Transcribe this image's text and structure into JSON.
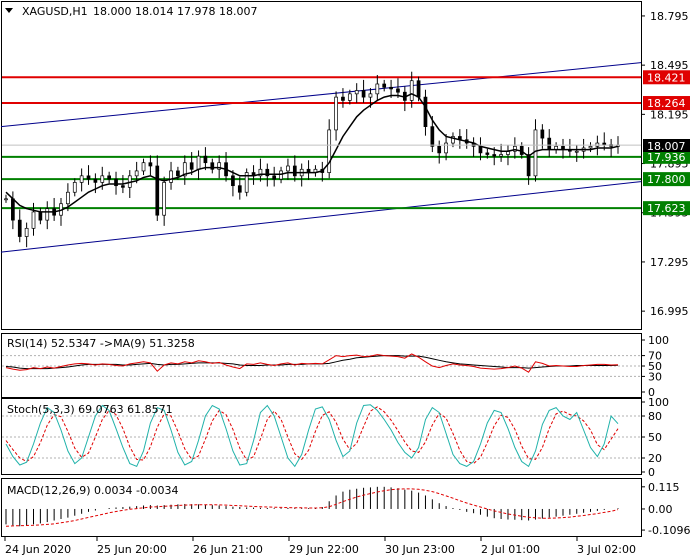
{
  "chart_data": {
    "type": "candlestick",
    "symbol": "XAGUSD,H1",
    "header_ohlc": "18.000 18.014 17.978 18.007",
    "price_axis_ticks": [
      "18.795",
      "18.495",
      "18.195",
      "17.895",
      "17.595",
      "17.295",
      "16.995"
    ],
    "ylim": [
      16.88,
      18.88
    ],
    "x_labels": [
      "24 Jun 2020",
      "25 Jun 20:00",
      "26 Jun 21:00",
      "29 Jun 22:00",
      "30 Jun 23:00",
      "2 Jul 01:00",
      "3 Jul 02:00"
    ],
    "horizontal_levels": [
      {
        "value": 18.421,
        "label": "18.421",
        "color": "#e00000"
      },
      {
        "value": 18.264,
        "label": "18.264",
        "color": "#e00000"
      },
      {
        "value": 17.936,
        "label": "17.936",
        "color": "#008000"
      },
      {
        "value": 17.8,
        "label": "17.800",
        "color": "#008000"
      },
      {
        "value": 17.623,
        "label": "17.623",
        "color": "#008000"
      }
    ],
    "current_price": {
      "value": 18.007,
      "label": "18.007"
    },
    "channel_lines": [
      {
        "from": 18.12,
        "to": 18.51,
        "color": "#00008b"
      },
      {
        "from": 17.355,
        "to": 17.785,
        "color": "#00008b"
      }
    ],
    "close_path": [
      17.68,
      17.55,
      17.45,
      17.5,
      17.6,
      17.55,
      17.62,
      17.58,
      17.65,
      17.72,
      17.78,
      17.82,
      17.8,
      17.78,
      17.82,
      17.8,
      17.76,
      17.75,
      17.82,
      17.85,
      17.9,
      17.88,
      17.58,
      17.78,
      17.85,
      17.82,
      17.9,
      17.86,
      17.94,
      17.9,
      17.86,
      17.9,
      17.82,
      17.76,
      17.72,
      17.84,
      17.82,
      17.86,
      17.82,
      17.8,
      17.85,
      17.88,
      17.82,
      17.86,
      17.84,
      17.86,
      17.84,
      18.1,
      18.3,
      18.28,
      18.32,
      18.34,
      18.3,
      18.32,
      18.38,
      18.36,
      18.35,
      18.33,
      18.28,
      18.4,
      18.3,
      18.12,
      18.0,
      17.96,
      18.02,
      18.06,
      18.04,
      18.02,
      18.0,
      17.96,
      17.95,
      17.94,
      17.95,
      17.97,
      18.0,
      17.95,
      17.82,
      18.1,
      18.05,
      17.98,
      18.0,
      17.98,
      17.97,
      17.97,
      17.99,
      18.0,
      18.02,
      18.01,
      18.0,
      18.007
    ],
    "ma_path": [
      17.72,
      17.68,
      17.64,
      17.62,
      17.61,
      17.6,
      17.6,
      17.6,
      17.61,
      17.63,
      17.66,
      17.69,
      17.72,
      17.74,
      17.76,
      17.77,
      17.77,
      17.77,
      17.78,
      17.79,
      17.81,
      17.82,
      17.8,
      17.79,
      17.8,
      17.81,
      17.83,
      17.84,
      17.86,
      17.87,
      17.87,
      17.87,
      17.86,
      17.84,
      17.82,
      17.82,
      17.82,
      17.83,
      17.83,
      17.83,
      17.83,
      17.84,
      17.84,
      17.84,
      17.84,
      17.84,
      17.85,
      17.9,
      17.98,
      18.06,
      18.12,
      18.18,
      18.22,
      18.25,
      18.28,
      18.3,
      18.31,
      18.31,
      18.3,
      18.32,
      18.3,
      18.24,
      18.16,
      18.1,
      18.06,
      18.05,
      18.04,
      18.03,
      18.02,
      18.0,
      17.99,
      17.98,
      17.97,
      17.97,
      17.98,
      17.97,
      17.94,
      17.97,
      17.98,
      17.98,
      17.98,
      17.98,
      17.98,
      17.98,
      17.98,
      17.98,
      17.99,
      17.99,
      17.99,
      18.0
    ],
    "indicators": {
      "rsi": {
        "label": "RSI(14) 52.5347 ->MA(9) 51.3258",
        "ticks": [
          "100",
          "70",
          "50",
          "30",
          "0"
        ],
        "levels": [
          70,
          50,
          30
        ],
        "range": [
          0,
          100
        ],
        "values": [
          47,
          44,
          42,
          43,
          47,
          45,
          48,
          46,
          49,
          52,
          54,
          55,
          54,
          52,
          54,
          53,
          51,
          50,
          54,
          56,
          58,
          56,
          40,
          52,
          56,
          54,
          58,
          56,
          60,
          58,
          55,
          57,
          52,
          48,
          45,
          54,
          53,
          56,
          53,
          51,
          54,
          56,
          52,
          55,
          54,
          55,
          54,
          62,
          70,
          68,
          70,
          71,
          68,
          69,
          72,
          70,
          69,
          68,
          65,
          73,
          67,
          58,
          50,
          47,
          51,
          54,
          52,
          51,
          49,
          46,
          45,
          44,
          45,
          47,
          50,
          46,
          38,
          58,
          55,
          50,
          51,
          50,
          49,
          49,
          51,
          52,
          53,
          53,
          52,
          52.5
        ],
        "ma_values": [
          49,
          48,
          46,
          45,
          45,
          45,
          45,
          46,
          47,
          48,
          50,
          52,
          53,
          53,
          53,
          53,
          53,
          52,
          52,
          53,
          54,
          55,
          53,
          52,
          53,
          53,
          54,
          55,
          56,
          56,
          56,
          56,
          55,
          54,
          52,
          51,
          51,
          51,
          52,
          52,
          52,
          53,
          53,
          53,
          54,
          54,
          54,
          55,
          58,
          61,
          63,
          66,
          67,
          68,
          69,
          70,
          70,
          70,
          69,
          69,
          69,
          67,
          64,
          61,
          58,
          56,
          54,
          53,
          52,
          51,
          50,
          49,
          48,
          47,
          47,
          47,
          46,
          47,
          48,
          49,
          50,
          50,
          50,
          51,
          51,
          51,
          51,
          51,
          51,
          51.3
        ]
      },
      "stoch": {
        "label": "Stoch(5,3,3) 69.0763 61.8571",
        "ticks": [
          "100",
          "80",
          "50",
          "20",
          "0"
        ],
        "levels": [
          80,
          50,
          20
        ],
        "range": [
          0,
          100
        ],
        "main": [
          40,
          22,
          10,
          14,
          40,
          70,
          92,
          85,
          60,
          30,
          12,
          20,
          50,
          80,
          95,
          88,
          62,
          35,
          12,
          8,
          30,
          70,
          92,
          88,
          60,
          28,
          10,
          15,
          45,
          80,
          95,
          90,
          62,
          30,
          10,
          12,
          45,
          85,
          95,
          80,
          50,
          20,
          8,
          25,
          60,
          90,
          93,
          75,
          45,
          22,
          30,
          70,
          95,
          96,
          88,
          75,
          60,
          42,
          28,
          20,
          35,
          75,
          92,
          85,
          55,
          25,
          12,
          8,
          15,
          40,
          70,
          88,
          85,
          62,
          35,
          15,
          8,
          30,
          68,
          88,
          92,
          80,
          75,
          85,
          60,
          35,
          22,
          40,
          80,
          69
        ],
        "signal": [
          45,
          32,
          20,
          15,
          22,
          42,
          67,
          82,
          79,
          58,
          34,
          21,
          27,
          50,
          75,
          88,
          82,
          62,
          36,
          18,
          17,
          36,
          64,
          83,
          80,
          58,
          33,
          18,
          23,
          47,
          73,
          88,
          82,
          61,
          34,
          17,
          22,
          47,
          75,
          87,
          75,
          50,
          26,
          18,
          31,
          58,
          81,
          86,
          71,
          47,
          32,
          41,
          65,
          87,
          93,
          86,
          74,
          59,
          43,
          30,
          28,
          43,
          67,
          84,
          77,
          55,
          31,
          15,
          12,
          21,
          42,
          66,
          81,
          78,
          61,
          37,
          19,
          18,
          35,
          62,
          83,
          87,
          82,
          80,
          73,
          60,
          39,
          32,
          47,
          61.9
        ]
      },
      "macd": {
        "label": "MACD(12,26,9) 0.0034 -0.0034",
        "ticks": [
          "0.115",
          "0.00",
          "-0.1096"
        ],
        "range": [
          -0.13,
          0.14
        ],
        "histogram": [
          -0.08,
          -0.085,
          -0.09,
          -0.088,
          -0.08,
          -0.075,
          -0.068,
          -0.06,
          -0.052,
          -0.045,
          -0.035,
          -0.025,
          -0.015,
          -0.008,
          0.0,
          0.005,
          0.008,
          0.01,
          0.012,
          0.015,
          0.018,
          0.02,
          0.018,
          0.02,
          0.022,
          0.024,
          0.026,
          0.025,
          0.024,
          0.022,
          0.02,
          0.018,
          0.015,
          0.012,
          0.01,
          0.008,
          0.007,
          0.006,
          0.005,
          0.004,
          0.004,
          0.005,
          0.004,
          0.004,
          0.004,
          0.005,
          0.01,
          0.04,
          0.07,
          0.09,
          0.1,
          0.105,
          0.11,
          0.112,
          0.115,
          0.115,
          0.112,
          0.108,
          0.1,
          0.095,
          0.085,
          0.07,
          0.05,
          0.03,
          0.015,
          0.005,
          -0.005,
          -0.015,
          -0.022,
          -0.03,
          -0.04,
          -0.048,
          -0.052,
          -0.055,
          -0.056,
          -0.058,
          -0.06,
          -0.055,
          -0.05,
          -0.045,
          -0.04,
          -0.035,
          -0.03,
          -0.025,
          -0.02,
          -0.015,
          -0.01,
          -0.005,
          0.0,
          0.0034
        ],
        "signal": [
          -0.09,
          -0.088,
          -0.087,
          -0.086,
          -0.085,
          -0.083,
          -0.08,
          -0.077,
          -0.072,
          -0.066,
          -0.06,
          -0.052,
          -0.044,
          -0.036,
          -0.028,
          -0.02,
          -0.013,
          -0.007,
          -0.002,
          0.002,
          0.006,
          0.01,
          0.012,
          0.014,
          0.016,
          0.018,
          0.02,
          0.021,
          0.022,
          0.022,
          0.022,
          0.021,
          0.02,
          0.018,
          0.017,
          0.015,
          0.013,
          0.011,
          0.01,
          0.009,
          0.008,
          0.007,
          0.006,
          0.006,
          0.005,
          0.005,
          0.006,
          0.012,
          0.024,
          0.038,
          0.05,
          0.062,
          0.072,
          0.08,
          0.088,
          0.095,
          0.1,
          0.103,
          0.104,
          0.104,
          0.102,
          0.097,
          0.09,
          0.08,
          0.068,
          0.056,
          0.043,
          0.031,
          0.02,
          0.01,
          0.0,
          -0.01,
          -0.018,
          -0.026,
          -0.032,
          -0.038,
          -0.043,
          -0.046,
          -0.048,
          -0.048,
          -0.047,
          -0.045,
          -0.042,
          -0.038,
          -0.034,
          -0.029,
          -0.024,
          -0.018,
          -0.012,
          -0.0034
        ]
      }
    }
  }
}
